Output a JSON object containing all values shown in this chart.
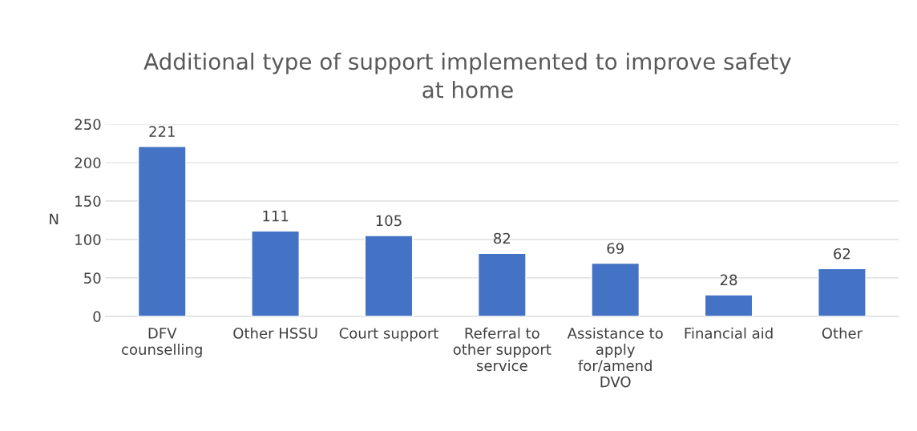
{
  "chart_data": {
    "type": "bar",
    "title": "Additional type of support implemented to improve safety\nat home",
    "ylabel": "N",
    "categories": [
      "DFV\ncounselling",
      "Other HSSU",
      "Court support",
      "Referral to\nother support\nservice",
      "Assistance to\napply\nfor/amend\nDVO",
      "Financial aid",
      "Other"
    ],
    "values": [
      221,
      111,
      105,
      82,
      69,
      28,
      62
    ],
    "color": "#4472c4",
    "ylim": [
      0,
      250
    ],
    "yticks": [
      0,
      50,
      100,
      150,
      200,
      250
    ],
    "grid": "y",
    "data_labels": true
  }
}
